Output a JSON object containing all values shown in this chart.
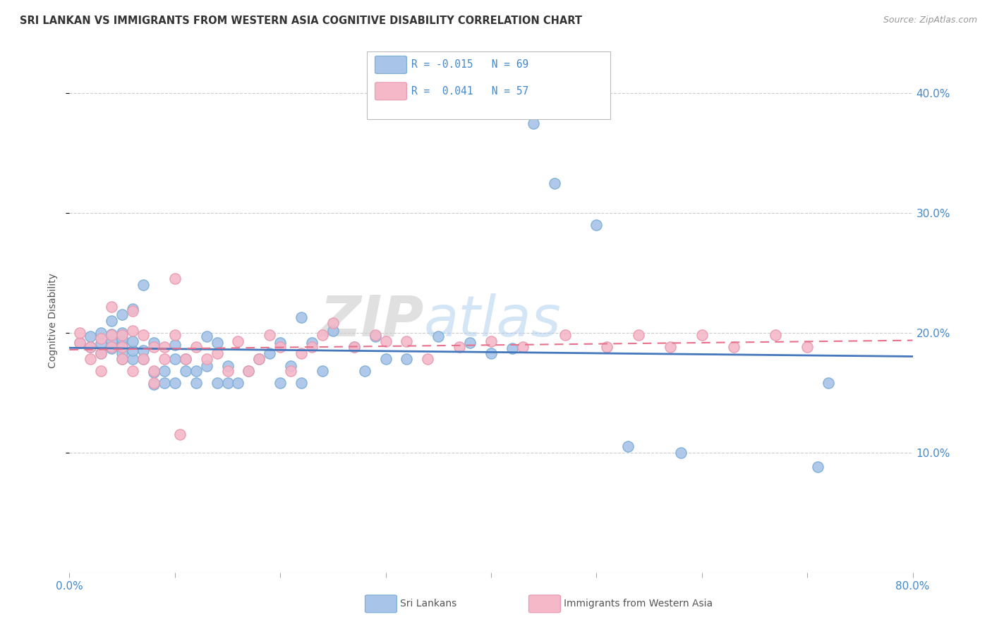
{
  "title": "SRI LANKAN VS IMMIGRANTS FROM WESTERN ASIA COGNITIVE DISABILITY CORRELATION CHART",
  "source": "Source: ZipAtlas.com",
  "ylabel": "Cognitive Disability",
  "xlim": [
    0.0,
    0.8
  ],
  "ylim": [
    0.0,
    0.42
  ],
  "xticks": [
    0.0,
    0.1,
    0.2,
    0.3,
    0.4,
    0.5,
    0.6,
    0.7,
    0.8
  ],
  "xticklabels_show": [
    "0.0%",
    "",
    "",
    "",
    "",
    "",
    "",
    "",
    "80.0%"
  ],
  "yticks": [
    0.1,
    0.2,
    0.3,
    0.4
  ],
  "yticklabels": [
    "10.0%",
    "20.0%",
    "30.0%",
    "40.0%"
  ],
  "legend_label1": "Sri Lankans",
  "legend_label2": "Immigrants from Western Asia",
  "r1": "-0.015",
  "n1": "69",
  "r2": "0.041",
  "n2": "57",
  "color1": "#a8c4e8",
  "color2": "#f4b8c8",
  "line_color1": "#4477bb",
  "line_color2": "#e8708a",
  "watermark_zip": "ZIP",
  "watermark_atlas": "atlas",
  "blue_scatter_x": [
    0.01,
    0.02,
    0.02,
    0.03,
    0.03,
    0.03,
    0.04,
    0.04,
    0.04,
    0.04,
    0.05,
    0.05,
    0.05,
    0.05,
    0.05,
    0.05,
    0.06,
    0.06,
    0.06,
    0.06,
    0.07,
    0.07,
    0.07,
    0.08,
    0.08,
    0.08,
    0.09,
    0.09,
    0.1,
    0.1,
    0.1,
    0.11,
    0.11,
    0.12,
    0.12,
    0.13,
    0.13,
    0.14,
    0.14,
    0.15,
    0.15,
    0.16,
    0.17,
    0.18,
    0.19,
    0.2,
    0.2,
    0.21,
    0.22,
    0.22,
    0.23,
    0.24,
    0.25,
    0.27,
    0.28,
    0.29,
    0.3,
    0.32,
    0.35,
    0.38,
    0.4,
    0.42,
    0.44,
    0.46,
    0.5,
    0.53,
    0.58,
    0.71,
    0.72
  ],
  "blue_scatter_y": [
    0.192,
    0.188,
    0.197,
    0.183,
    0.191,
    0.2,
    0.187,
    0.193,
    0.199,
    0.21,
    0.178,
    0.183,
    0.19,
    0.195,
    0.2,
    0.215,
    0.178,
    0.185,
    0.193,
    0.22,
    0.178,
    0.185,
    0.24,
    0.157,
    0.167,
    0.192,
    0.158,
    0.168,
    0.178,
    0.19,
    0.158,
    0.168,
    0.178,
    0.158,
    0.168,
    0.172,
    0.197,
    0.158,
    0.192,
    0.158,
    0.172,
    0.158,
    0.168,
    0.178,
    0.183,
    0.158,
    0.192,
    0.172,
    0.158,
    0.213,
    0.192,
    0.168,
    0.202,
    0.188,
    0.168,
    0.197,
    0.178,
    0.178,
    0.197,
    0.192,
    0.183,
    0.187,
    0.375,
    0.325,
    0.29,
    0.105,
    0.1,
    0.088,
    0.158
  ],
  "pink_scatter_x": [
    0.01,
    0.01,
    0.02,
    0.02,
    0.03,
    0.03,
    0.03,
    0.04,
    0.04,
    0.04,
    0.05,
    0.05,
    0.05,
    0.06,
    0.06,
    0.06,
    0.07,
    0.07,
    0.08,
    0.08,
    0.08,
    0.09,
    0.09,
    0.1,
    0.1,
    0.11,
    0.12,
    0.13,
    0.14,
    0.15,
    0.16,
    0.17,
    0.18,
    0.19,
    0.2,
    0.21,
    0.22,
    0.23,
    0.24,
    0.25,
    0.27,
    0.29,
    0.3,
    0.32,
    0.34,
    0.37,
    0.4,
    0.43,
    0.47,
    0.51,
    0.54,
    0.57,
    0.6,
    0.63,
    0.67,
    0.7,
    0.105
  ],
  "pink_scatter_y": [
    0.192,
    0.2,
    0.178,
    0.188,
    0.168,
    0.183,
    0.195,
    0.188,
    0.198,
    0.222,
    0.178,
    0.188,
    0.198,
    0.168,
    0.202,
    0.218,
    0.178,
    0.198,
    0.168,
    0.188,
    0.158,
    0.178,
    0.188,
    0.198,
    0.245,
    0.178,
    0.188,
    0.178,
    0.183,
    0.168,
    0.193,
    0.168,
    0.178,
    0.198,
    0.188,
    0.168,
    0.183,
    0.188,
    0.198,
    0.208,
    0.188,
    0.198,
    0.193,
    0.193,
    0.178,
    0.188,
    0.193,
    0.188,
    0.198,
    0.188,
    0.198,
    0.188,
    0.198,
    0.188,
    0.198,
    0.188,
    0.115
  ]
}
